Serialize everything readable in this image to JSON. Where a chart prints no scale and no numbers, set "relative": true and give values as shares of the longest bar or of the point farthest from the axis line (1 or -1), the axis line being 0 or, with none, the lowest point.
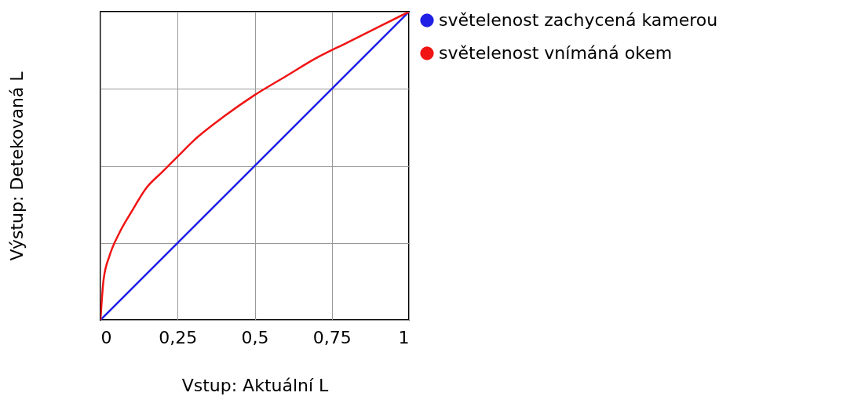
{
  "chart_data": {
    "type": "line",
    "xlabel": "Vstup: Aktuální L",
    "ylabel": "Výstup: Detekovaná L",
    "relative": true,
    "xlim": [
      0,
      1
    ],
    "xticks": [
      0,
      {
        "value": 0.25,
        "label": "0,25"
      },
      {
        "value": 0.5,
        "label": "0,5"
      },
      {
        "value": 0.75,
        "label": "0,75"
      },
      1
    ],
    "grid": true,
    "legend": "top right",
    "line_style": "solid",
    "series": [
      {
        "name": "světelenost zachycená kamerou",
        "color": "#1f1fe6",
        "x": [
          0,
          1
        ],
        "values": [
          0,
          1
        ]
      },
      {
        "name": "světelenost vnímáná okem",
        "color": "#f01414",
        "x": [
          0,
          0.01,
          0.03,
          0.06,
          0.1,
          0.15,
          0.2,
          0.25,
          0.3,
          0.4,
          0.5,
          0.6,
          0.7,
          0.8,
          0.9,
          1
        ],
        "values": [
          0,
          0.13,
          0.21,
          0.28,
          0.35,
          0.43,
          0.48,
          0.53,
          0.58,
          0.66,
          0.73,
          0.79,
          0.85,
          0.9,
          0.95,
          1
        ]
      }
    ]
  }
}
